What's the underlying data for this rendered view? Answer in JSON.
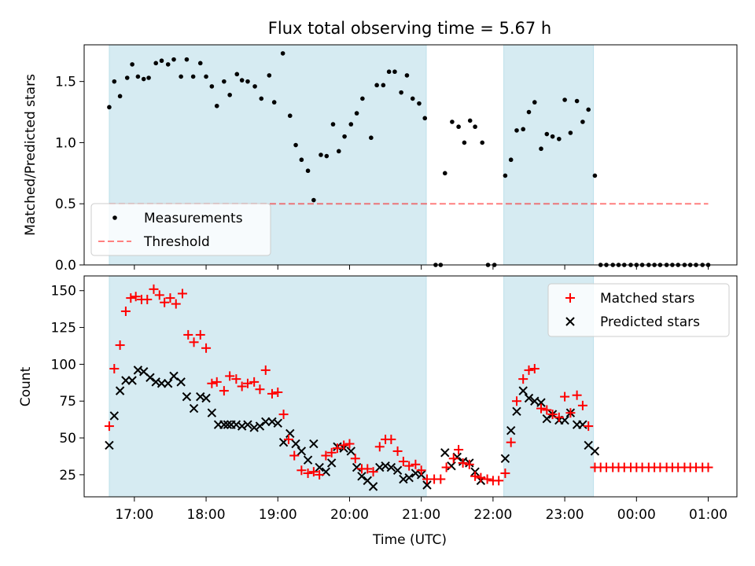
{
  "chart_data": {
    "type": "scatter",
    "title": "Flux total observing time = 5.67 h",
    "xlabel": "Time (UTC)",
    "x_tick_labels": [
      "17:00",
      "18:00",
      "19:00",
      "20:00",
      "21:00",
      "22:00",
      "23:00",
      "00:00",
      "01:00"
    ],
    "x_tick_hours": [
      17,
      18,
      19,
      20,
      21,
      22,
      23,
      24,
      25
    ],
    "xlim_hours": [
      16.3,
      25.4
    ],
    "observing_windows_hours": [
      [
        16.65,
        21.07
      ],
      [
        22.15,
        23.4
      ]
    ],
    "top": {
      "ylabel": "Matched/Predicted stars",
      "ylim": [
        0,
        1.8
      ],
      "yticks": [
        0.0,
        0.5,
        1.0,
        1.5
      ],
      "ytick_labels": [
        "0.0",
        "0.5",
        "1.0",
        "1.5"
      ],
      "threshold": {
        "name": "Threshold",
        "value": 0.5,
        "x_range": [
          16.65,
          25.0
        ]
      },
      "legend": [
        "Measurements",
        "Threshold"
      ],
      "legend_loc": "lower-left",
      "measurements": {
        "name": "Measurements",
        "x": [
          16.65,
          16.72,
          16.8,
          16.9,
          16.97,
          17.05,
          17.13,
          17.2,
          17.3,
          17.38,
          17.47,
          17.55,
          17.65,
          17.73,
          17.82,
          17.92,
          18.0,
          18.08,
          18.15,
          18.25,
          18.33,
          18.43,
          18.5,
          18.58,
          18.68,
          18.77,
          18.88,
          18.95,
          19.07,
          19.17,
          19.25,
          19.33,
          19.42,
          19.5,
          19.6,
          19.68,
          19.77,
          19.85,
          19.93,
          20.02,
          20.1,
          20.18,
          20.3,
          20.38,
          20.47,
          20.55,
          20.63,
          20.72,
          20.8,
          20.88,
          20.97,
          21.05,
          21.2,
          21.27,
          21.33,
          21.43,
          21.52,
          21.6,
          21.68,
          21.75,
          21.85,
          21.93,
          22.02,
          22.17,
          22.25,
          22.33,
          22.42,
          22.5,
          22.58,
          22.67,
          22.75,
          22.83,
          22.92,
          23.0,
          23.08,
          23.17,
          23.25,
          23.33,
          23.42,
          23.5,
          23.58,
          23.67,
          23.75,
          23.83,
          23.92,
          24.0,
          24.08,
          24.17,
          24.25,
          24.33,
          24.42,
          24.5,
          24.58,
          24.67,
          24.75,
          24.83,
          24.92,
          25.0
        ],
        "y": [
          1.29,
          1.5,
          1.38,
          1.53,
          1.64,
          1.54,
          1.52,
          1.53,
          1.65,
          1.67,
          1.64,
          1.68,
          1.54,
          1.68,
          1.54,
          1.65,
          1.54,
          1.46,
          1.3,
          1.5,
          1.39,
          1.56,
          1.51,
          1.5,
          1.46,
          1.36,
          1.55,
          1.33,
          1.73,
          1.22,
          0.98,
          0.86,
          0.77,
          0.53,
          0.9,
          0.89,
          1.15,
          0.93,
          1.05,
          1.15,
          1.24,
          1.36,
          1.04,
          1.47,
          1.47,
          1.58,
          1.58,
          1.41,
          1.55,
          1.36,
          1.32,
          1.2,
          0.0,
          0.0,
          0.75,
          1.17,
          1.13,
          1.0,
          1.18,
          1.13,
          1.0,
          0.0,
          0.0,
          0.73,
          0.86,
          1.1,
          1.11,
          1.25,
          1.33,
          0.95,
          1.07,
          1.05,
          1.03,
          1.35,
          1.08,
          1.34,
          1.17,
          1.27,
          0.73,
          0.0,
          0.0,
          0.0,
          0.0,
          0.0,
          0.0,
          0.0,
          0.0,
          0.0,
          0.0,
          0.0,
          0.0,
          0.0,
          0.0,
          0.0,
          0.0,
          0.0,
          0.0,
          0.0
        ]
      }
    },
    "bottom": {
      "ylabel": "Count",
      "ylim": [
        10,
        160
      ],
      "yticks": [
        25,
        50,
        75,
        100,
        125,
        150
      ],
      "ytick_labels": [
        "25",
        "50",
        "75",
        "100",
        "125",
        "150"
      ],
      "legend": [
        "Matched stars",
        "Predicted stars"
      ],
      "legend_loc": "upper-right",
      "matched": {
        "name": "Matched stars",
        "x": [
          16.65,
          16.72,
          16.8,
          16.88,
          16.95,
          17.02,
          17.1,
          17.18,
          17.27,
          17.35,
          17.42,
          17.5,
          17.58,
          17.67,
          17.75,
          17.83,
          17.92,
          18.0,
          18.08,
          18.15,
          18.25,
          18.33,
          18.42,
          18.5,
          18.58,
          18.67,
          18.75,
          18.83,
          18.92,
          19.0,
          19.08,
          19.15,
          19.23,
          19.33,
          19.42,
          19.5,
          19.58,
          19.67,
          19.75,
          19.83,
          19.92,
          20.0,
          20.08,
          20.17,
          20.25,
          20.33,
          20.42,
          20.5,
          20.58,
          20.67,
          20.75,
          20.83,
          20.92,
          21.0,
          21.08,
          21.18,
          21.27,
          21.35,
          21.45,
          21.52,
          21.58,
          21.67,
          21.75,
          21.83,
          21.92,
          22.0,
          22.08,
          22.17,
          22.25,
          22.33,
          22.42,
          22.5,
          22.58,
          22.67,
          22.75,
          22.83,
          22.92,
          23.0,
          23.08,
          23.17,
          23.25,
          23.33,
          23.42,
          23.5,
          23.58,
          23.67,
          23.75,
          23.83,
          23.92,
          24.0,
          24.08,
          24.17,
          24.25,
          24.33,
          24.42,
          24.5,
          24.58,
          24.67,
          24.75,
          24.83,
          24.92,
          25.0
        ],
        "y": [
          58,
          97,
          113,
          136,
          145,
          146,
          144,
          144,
          151,
          147,
          142,
          145,
          141,
          148,
          120,
          115,
          120,
          111,
          87,
          88,
          82,
          92,
          90,
          85,
          87,
          88,
          83,
          96,
          80,
          81,
          66,
          49,
          38,
          28,
          26,
          27,
          25,
          38,
          40,
          43,
          45,
          46,
          36,
          29,
          29,
          27,
          44,
          49,
          49,
          41,
          34,
          31,
          32,
          28,
          22,
          22,
          22,
          30,
          36,
          42,
          33,
          32,
          24,
          23,
          22,
          21,
          21,
          26,
          47,
          75,
          90,
          96,
          97,
          70,
          69,
          66,
          64,
          78,
          67,
          79,
          72,
          58,
          30,
          30,
          30,
          30,
          30,
          30,
          30,
          30,
          30,
          30,
          30,
          30,
          30,
          30,
          30,
          30,
          30,
          30,
          30,
          30
        ]
      },
      "predicted": {
        "name": "Predicted stars",
        "x": [
          16.65,
          16.72,
          16.8,
          16.88,
          16.97,
          17.05,
          17.13,
          17.22,
          17.3,
          17.38,
          17.47,
          17.55,
          17.65,
          17.73,
          17.83,
          17.92,
          18.0,
          18.08,
          18.17,
          18.25,
          18.3,
          18.35,
          18.42,
          18.5,
          18.58,
          18.67,
          18.75,
          18.83,
          18.92,
          19.0,
          19.08,
          19.17,
          19.25,
          19.33,
          19.42,
          19.5,
          19.58,
          19.67,
          19.75,
          19.83,
          19.92,
          20.02,
          20.1,
          20.17,
          20.25,
          20.33,
          20.42,
          20.5,
          20.58,
          20.67,
          20.75,
          20.83,
          20.92,
          21.0,
          21.08,
          21.33,
          21.42,
          21.5,
          21.58,
          21.67,
          21.75,
          21.83,
          22.17,
          22.25,
          22.33,
          22.42,
          22.5,
          22.58,
          22.67,
          22.75,
          22.83,
          22.92,
          23.0,
          23.08,
          23.17,
          23.25,
          23.33,
          23.42
        ],
        "y": [
          45,
          65,
          82,
          89,
          89,
          96,
          95,
          91,
          88,
          87,
          87,
          92,
          88,
          78,
          70,
          78,
          77,
          67,
          59,
          59,
          59,
          59,
          59,
          58,
          59,
          57,
          58,
          61,
          61,
          60,
          47,
          53,
          46,
          41,
          35,
          46,
          30,
          27,
          33,
          44,
          43,
          41,
          30,
          24,
          21,
          17,
          30,
          31,
          30,
          28,
          22,
          23,
          26,
          25,
          18,
          40,
          31,
          37,
          34,
          33,
          27,
          21,
          36,
          55,
          68,
          82,
          77,
          75,
          74,
          63,
          66,
          62,
          62,
          67,
          59,
          59,
          45,
          41
        ]
      }
    }
  }
}
